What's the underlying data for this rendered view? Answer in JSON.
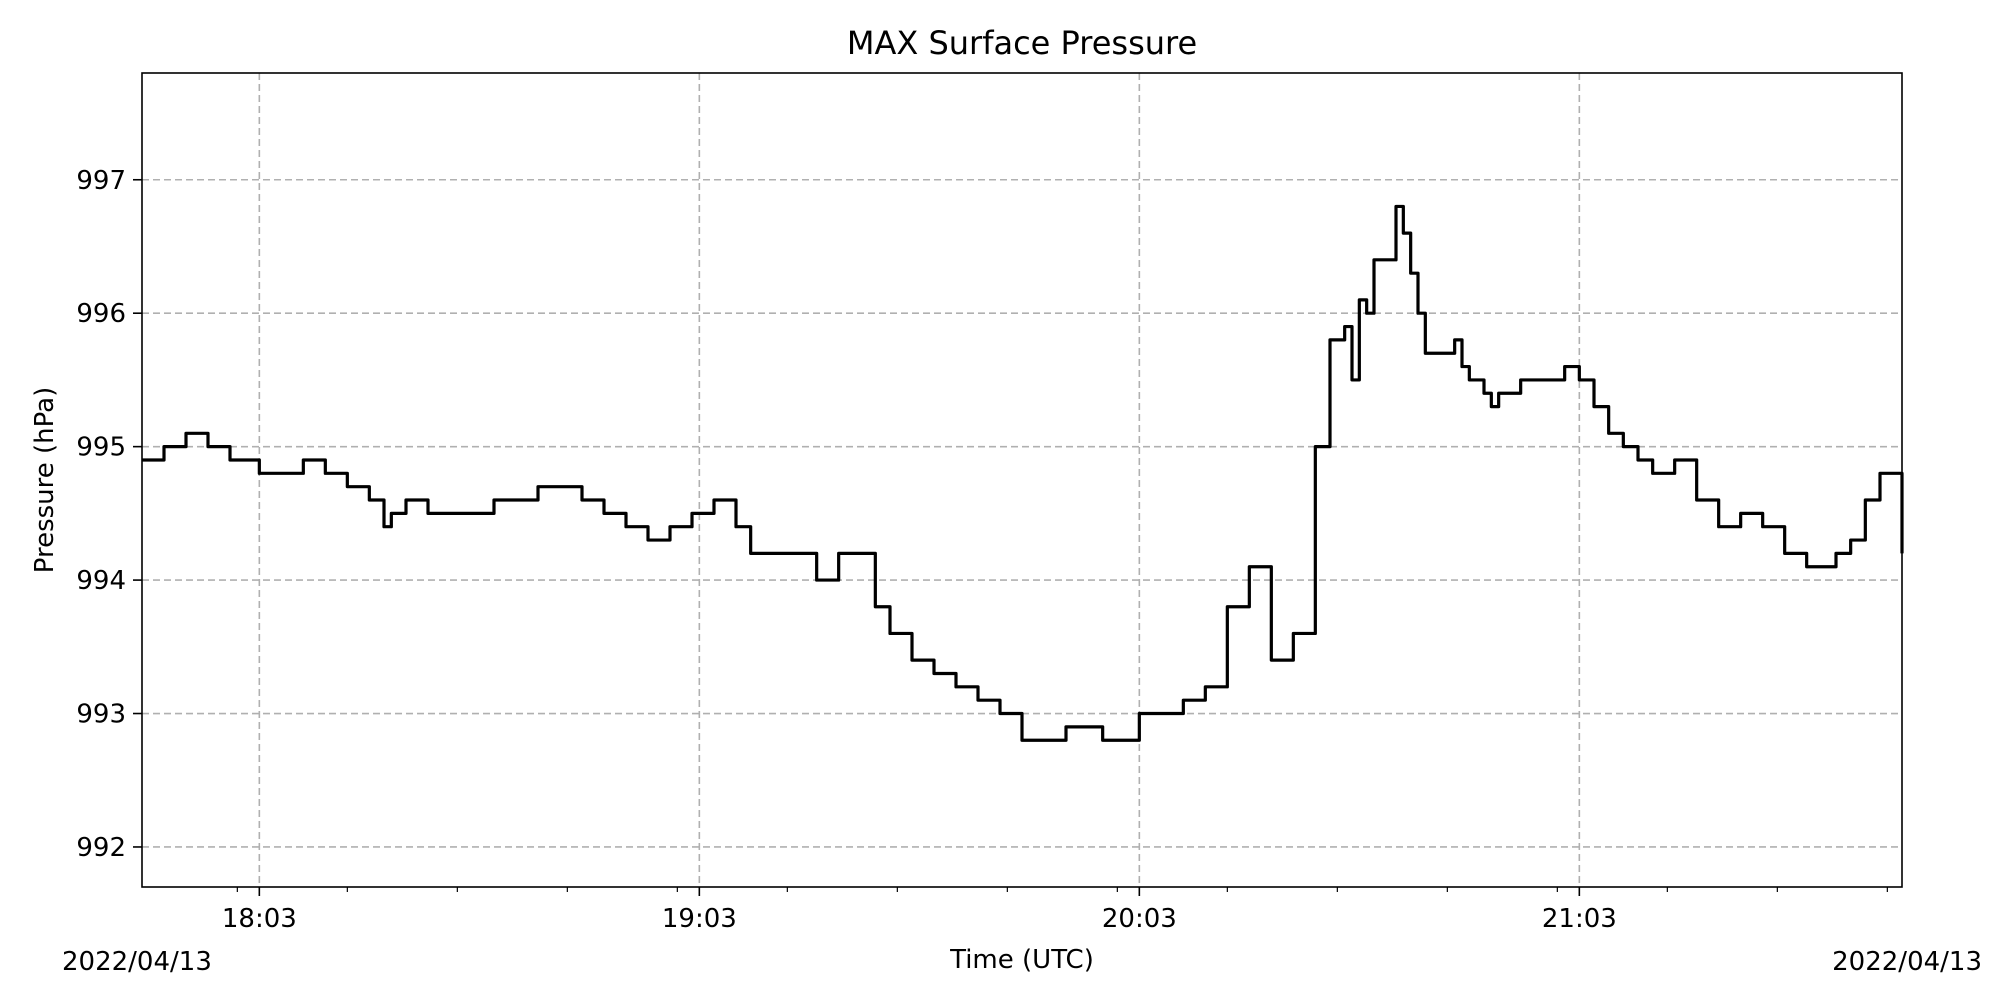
{
  "chart_data": {
    "type": "line",
    "title": "MAX Surface Pressure",
    "xlabel": "Time (UTC)",
    "ylabel": "Pressure (hPa)",
    "x_start_label": "2022/04/13",
    "x_end_label": "2022/04/13",
    "xlim": [
      "17:47",
      "21:47"
    ],
    "ylim": [
      991.7,
      997.8
    ],
    "x_ticks": [
      "18:03",
      "19:03",
      "20:03",
      "21:03"
    ],
    "y_ticks": [
      992,
      993,
      994,
      995,
      996,
      997
    ],
    "grid": true,
    "grid_style": "dashed",
    "line_color": "#000000",
    "grid_color": "#b0b0b0",
    "series": [
      {
        "x": [
          "17:47",
          "17:50",
          "17:53",
          "17:56",
          "17:59",
          "18:03",
          "18:06",
          "18:09",
          "18:12",
          "18:15",
          "18:18",
          "18:20",
          "18:21",
          "18:23",
          "18:26",
          "18:29",
          "18:32",
          "18:35",
          "18:38",
          "18:41",
          "18:44",
          "18:47",
          "18:50",
          "18:53",
          "18:56",
          "18:59",
          "19:02",
          "19:05",
          "19:08",
          "19:10",
          "19:13",
          "19:16",
          "19:19",
          "19:22",
          "19:24",
          "19:27",
          "19:29",
          "19:32",
          "19:35",
          "19:38",
          "19:41",
          "19:44",
          "19:47",
          "19:50",
          "19:53",
          "19:56",
          "19:58",
          "20:00",
          "20:03",
          "20:06",
          "20:09",
          "20:12",
          "20:15",
          "20:18",
          "20:21",
          "20:24",
          "20:27",
          "20:29",
          "20:31",
          "20:32",
          "20:33",
          "20:34",
          "20:35",
          "20:36",
          "20:38",
          "20:39",
          "20:40",
          "20:41",
          "20:42",
          "20:44",
          "20:45",
          "20:46",
          "20:47",
          "20:48",
          "20:50",
          "20:51",
          "20:52",
          "20:55",
          "20:58",
          "21:01",
          "21:03",
          "21:05",
          "21:07",
          "21:09",
          "21:11",
          "21:13",
          "21:16",
          "21:19",
          "21:22",
          "21:25",
          "21:28",
          "21:31",
          "21:34",
          "21:36",
          "21:38",
          "21:40",
          "21:42",
          "21:44",
          "21:45",
          "21:47"
        ],
        "y": [
          994.9,
          995.0,
          995.1,
          995.0,
          994.9,
          994.8,
          994.8,
          994.9,
          994.8,
          994.7,
          994.6,
          994.4,
          994.5,
          994.6,
          994.5,
          994.5,
          994.5,
          994.6,
          994.6,
          994.7,
          994.7,
          994.6,
          994.5,
          994.4,
          994.3,
          994.4,
          994.5,
          994.6,
          994.4,
          994.2,
          994.2,
          994.2,
          994.0,
          994.2,
          994.2,
          993.8,
          993.6,
          993.4,
          993.3,
          993.2,
          993.1,
          993.0,
          992.8,
          992.8,
          992.9,
          992.9,
          992.8,
          992.8,
          993.0,
          993.0,
          993.1,
          993.2,
          993.8,
          994.1,
          993.4,
          993.6,
          995.0,
          995.8,
          995.9,
          995.5,
          996.1,
          996.0,
          996.4,
          996.4,
          996.8,
          996.6,
          996.3,
          996.0,
          995.7,
          995.7,
          995.7,
          995.8,
          995.6,
          995.5,
          995.4,
          995.3,
          995.4,
          995.5,
          995.5,
          995.6,
          995.5,
          995.3,
          995.1,
          995.0,
          994.9,
          994.8,
          994.9,
          994.6,
          994.4,
          994.5,
          994.4,
          994.2,
          994.1,
          994.1,
          994.2,
          994.3,
          994.6,
          994.8,
          994.8,
          994.2
        ]
      }
    ]
  }
}
